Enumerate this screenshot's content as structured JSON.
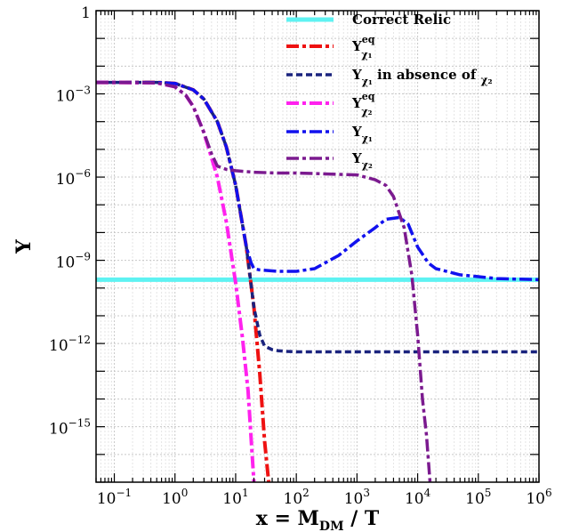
{
  "chart_data": {
    "type": "line",
    "xlabel": "x = M_DM / T",
    "ylabel": "Y",
    "x_scale": "log",
    "y_scale": "log",
    "xlim": [
      0.05,
      1000000
    ],
    "ylim": [
      1e-17,
      1
    ],
    "grid": true,
    "legend_position": "top-right",
    "x_ticks": [
      {
        "value": 0.1,
        "base": "10",
        "exp": "−1"
      },
      {
        "value": 1,
        "base": "10",
        "exp": "0"
      },
      {
        "value": 10,
        "base": "10",
        "exp": "1"
      },
      {
        "value": 100,
        "base": "10",
        "exp": "2"
      },
      {
        "value": 1000,
        "base": "10",
        "exp": "3"
      },
      {
        "value": 10000,
        "base": "10",
        "exp": "4"
      },
      {
        "value": 100000,
        "base": "10",
        "exp": "5"
      },
      {
        "value": 1000000,
        "base": "10",
        "exp": "6"
      }
    ],
    "y_ticks": [
      {
        "value": 1,
        "base": "1",
        "exp": ""
      },
      {
        "value": 0.001,
        "base": "10",
        "exp": "−3"
      },
      {
        "value": 1e-06,
        "base": "10",
        "exp": "−6"
      },
      {
        "value": 1e-09,
        "base": "10",
        "exp": "−9"
      },
      {
        "value": 1e-12,
        "base": "10",
        "exp": "−12"
      },
      {
        "value": 1e-15,
        "base": "10",
        "exp": "−15"
      }
    ],
    "series": [
      {
        "legend": {
          "main": "Correct Relic",
          "sub": "",
          "sup": "",
          "tail": "",
          "tail_sub": ""
        },
        "color": "#5ef2f2",
        "dash": "",
        "width": 5,
        "x": [
          0.05,
          1000000
        ],
        "y": [
          2e-10,
          2e-10
        ]
      },
      {
        "legend": {
          "main": "Y",
          "sub": "χ₁",
          "sup": "eq",
          "tail": "",
          "tail_sub": ""
        },
        "color": "#ee1111",
        "dash": "14 4 4 4",
        "width": 4,
        "x": [
          0.05,
          0.5,
          1,
          2,
          3,
          5,
          7,
          10,
          15,
          20,
          25,
          30,
          35
        ],
        "y": [
          0.0026,
          0.0026,
          0.0024,
          0.0014,
          0.00065,
          0.0001,
          1.25e-05,
          5e-07,
          3e-09,
          2e-11,
          8e-14,
          3e-16,
          1e-17
        ]
      },
      {
        "legend": {
          "main": "Y",
          "sub": "χ₁",
          "sup": "",
          "tail": " in absence of ",
          "tail_sub": "χ₂"
        },
        "color": "#1a237e",
        "dash": "7 4",
        "width": 3.5,
        "x": [
          0.05,
          0.5,
          1,
          2,
          3,
          5,
          7,
          10,
          15,
          20,
          25,
          30,
          40,
          50,
          70,
          100,
          200,
          1000,
          100000,
          1000000
        ],
        "y": [
          0.0026,
          0.0026,
          0.0024,
          0.0014,
          0.00065,
          0.0001,
          1.25e-05,
          5e-07,
          3e-09,
          2e-11,
          2e-12,
          8e-13,
          6e-13,
          5.5e-13,
          5.2e-13,
          5e-13,
          5e-13,
          5e-13,
          5e-13,
          5e-13
        ]
      },
      {
        "legend": {
          "main": "Y",
          "sub": "χ₂",
          "sup": "eq",
          "tail": "",
          "tail_sub": ""
        },
        "color": "#ff22ee",
        "dash": "14 4 4 4",
        "width": 4,
        "x": [
          0.05,
          0.5,
          1,
          1.5,
          2,
          3,
          5,
          7,
          10,
          13,
          16,
          20
        ],
        "y": [
          0.0026,
          0.0025,
          0.0018,
          0.0009,
          0.00035,
          4e-05,
          1e-06,
          2.5e-08,
          1.5e-10,
          1.5e-12,
          2e-14,
          1e-17
        ]
      },
      {
        "legend": {
          "main": "Y",
          "sub": "χ₁",
          "sup": "",
          "tail": "",
          "tail_sub": ""
        },
        "color": "#1111ee",
        "dash": "14 4 4 4",
        "width": 3.5,
        "x": [
          0.05,
          0.5,
          1,
          2,
          3,
          5,
          7,
          10,
          15,
          18,
          20,
          25,
          50,
          100,
          200,
          500,
          1000,
          2000,
          3000,
          5000,
          7000,
          10000,
          15000,
          20000,
          50000,
          200000,
          1000000
        ],
        "y": [
          0.0026,
          0.0026,
          0.0024,
          0.0014,
          0.00065,
          0.0001,
          1.25e-05,
          5e-07,
          3e-09,
          8e-10,
          5e-10,
          4.5e-10,
          4e-10,
          4e-10,
          5e-10,
          1.5e-09,
          5e-09,
          1.5e-08,
          3e-08,
          3.5e-08,
          2e-08,
          3e-09,
          8e-10,
          5e-10,
          3e-10,
          2.2e-10,
          2e-10
        ]
      },
      {
        "legend": {
          "main": "Y",
          "sub": "χ₂",
          "sup": "",
          "tail": "",
          "tail_sub": ""
        },
        "color": "#7b1a8f",
        "dash": "14 4 4 4",
        "width": 3.5,
        "x": [
          0.05,
          0.5,
          1,
          1.5,
          2,
          3,
          4,
          5,
          7,
          10,
          20,
          50,
          100,
          300,
          1000,
          2000,
          3000,
          4000,
          6000,
          8000,
          10000,
          12000,
          14000,
          16000
        ],
        "y": [
          0.0026,
          0.0025,
          0.0018,
          0.0009,
          0.00035,
          4e-05,
          7e-06,
          2.5e-06,
          1.9e-06,
          1.7e-06,
          1.5e-06,
          1.4e-06,
          1.4e-06,
          1.3e-06,
          1.2e-06,
          8e-07,
          5e-07,
          2e-07,
          1.5e-08,
          3e-10,
          2e-12,
          1e-14,
          5e-16,
          1e-17
        ]
      }
    ]
  }
}
